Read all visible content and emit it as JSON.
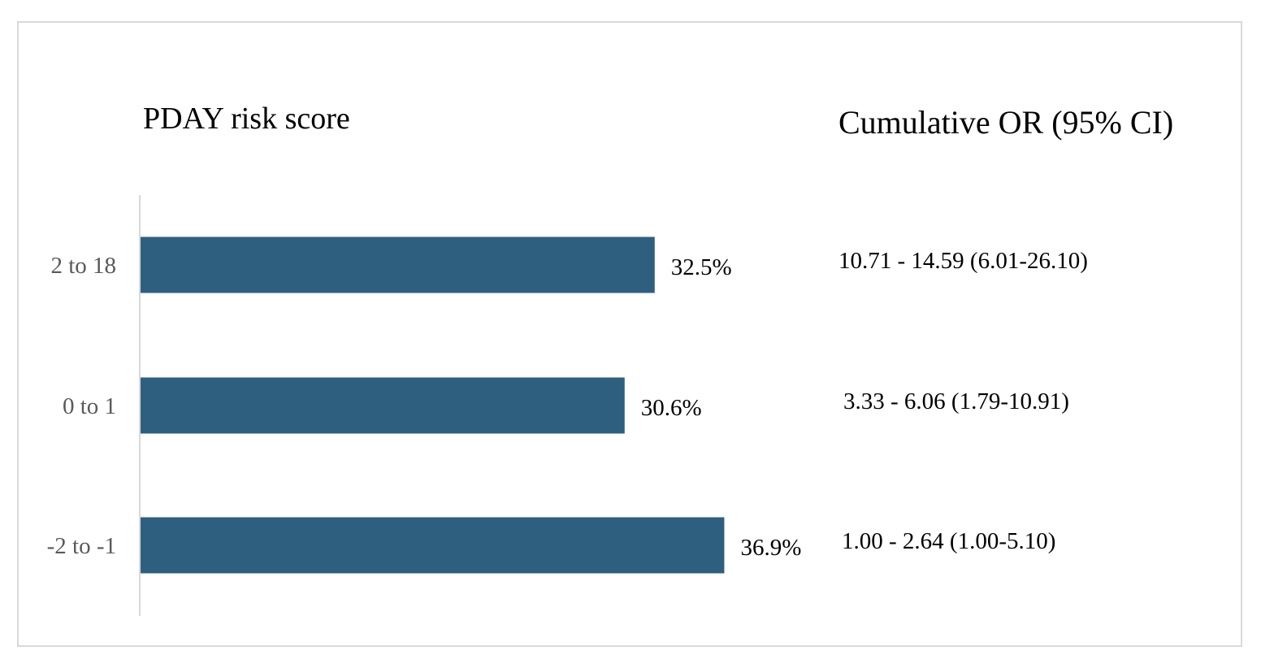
{
  "headings": {
    "category_header": "PDAY risk score",
    "or_header": "Cumulative OR (95% CI)"
  },
  "colors": {
    "bar": "#2f5f7f",
    "axis": "#d9d9d9",
    "frame": "#d9d9d9",
    "category_text": "#595959",
    "value_text": "#000000"
  },
  "chart_data": {
    "type": "bar",
    "orientation": "horizontal",
    "categories": [
      "2 to 18",
      "0 to 1",
      "-2 to -1"
    ],
    "values": [
      32.5,
      30.6,
      36.9
    ],
    "data_labels": [
      "32.5%",
      "30.6%",
      "36.9%"
    ],
    "grid": false,
    "legend": "none"
  },
  "cumulative_or": [
    "10.71 - 14.59 (6.01-26.10)",
    "3.33 - 6.06 (1.79-10.91)",
    "1.00 - 2.64 (1.00-5.10)"
  ]
}
